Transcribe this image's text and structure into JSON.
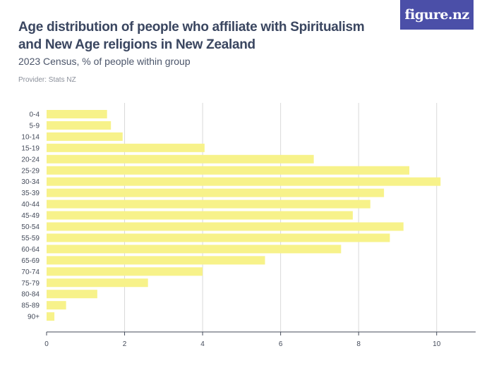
{
  "header": {
    "title": "Age distribution of people who affiliate with Spiritualism and New Age religions in New Zealand",
    "subtitle": "2023 Census, % of people within group",
    "provider": "Provider: Stats NZ",
    "logo_text": "figure.nz"
  },
  "colors": {
    "bar": "#f7f28a",
    "grid": "#d9d9d9",
    "axis": "#444b5a",
    "logo_bg": "#4b4fa8"
  },
  "chart_data": {
    "type": "bar",
    "orientation": "horizontal",
    "title": "Age distribution of people who affiliate with Spiritualism and New Age religions in New Zealand",
    "subtitle": "2023 Census, % of people within group",
    "xlabel": "",
    "ylabel": "",
    "xlim": [
      0,
      11
    ],
    "xticks": [
      0,
      2,
      4,
      6,
      8,
      10
    ],
    "grid": true,
    "legend": "none",
    "categories": [
      "0-4",
      "5-9",
      "10-14",
      "15-19",
      "20-24",
      "25-29",
      "30-34",
      "35-39",
      "40-44",
      "45-49",
      "50-54",
      "55-59",
      "60-64",
      "65-69",
      "70-74",
      "75-79",
      "80-84",
      "85-89",
      "90+"
    ],
    "values": [
      1.55,
      1.65,
      1.95,
      4.05,
      6.85,
      9.3,
      10.1,
      8.65,
      8.3,
      7.85,
      9.15,
      8.8,
      7.55,
      5.6,
      4.0,
      2.6,
      1.3,
      0.5,
      0.2
    ]
  }
}
